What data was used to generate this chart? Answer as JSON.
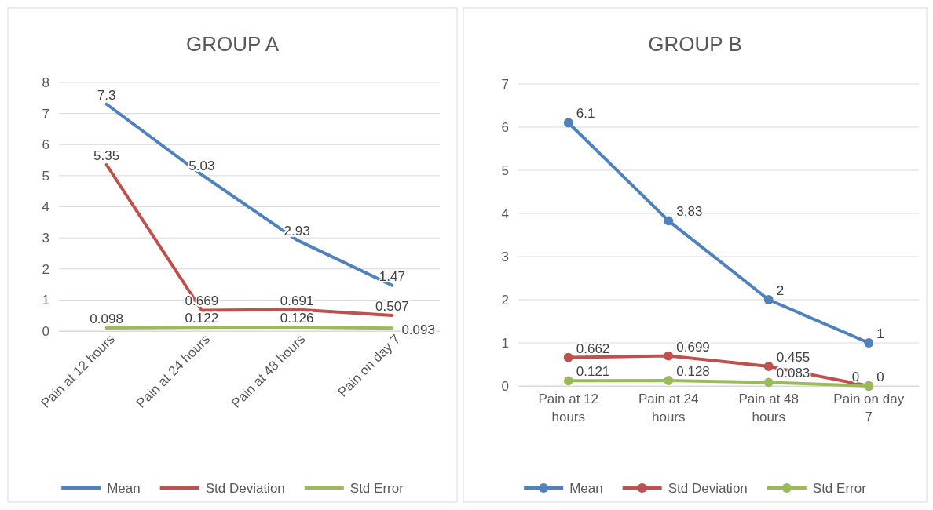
{
  "chart_data": [
    {
      "type": "line",
      "title": "GROUP A",
      "categories": [
        "Pain at 12 hours",
        "Pain at 24 hours",
        "Pain at 48 hours",
        "Pain on day 7"
      ],
      "series": [
        {
          "name": "Mean",
          "color": "#4f81bd",
          "values": [
            7.3,
            5.03,
            2.93,
            1.47
          ]
        },
        {
          "name": "Std Deviation",
          "color": "#c0504d",
          "values": [
            5.35,
            0.669,
            0.691,
            0.507
          ]
        },
        {
          "name": "Std Error",
          "color": "#9bbb59",
          "values": [
            0.098,
            0.122,
            0.126,
            0.093
          ]
        }
      ],
      "ylim": [
        0,
        8
      ],
      "yticks": [
        0,
        1,
        2,
        3,
        4,
        5,
        6,
        7,
        8
      ],
      "grid": "y",
      "legend": "bottom",
      "marker": "none",
      "data_labels": true
    },
    {
      "type": "line",
      "title": "GROUP B",
      "categories": [
        "Pain at 12 hours",
        "Pain at 24 hours",
        "Pain at 48 hours",
        "Pain on day 7"
      ],
      "series": [
        {
          "name": "Mean",
          "color": "#4f81bd",
          "values": [
            6.1,
            3.83,
            2,
            1
          ]
        },
        {
          "name": "Std Deviation",
          "color": "#c0504d",
          "values": [
            0.662,
            0.699,
            0.455,
            0
          ]
        },
        {
          "name": "Std Error",
          "color": "#9bbb59",
          "values": [
            0.121,
            0.128,
            0.083,
            0
          ]
        }
      ],
      "ylim": [
        0,
        7
      ],
      "yticks": [
        0,
        1,
        2,
        3,
        4,
        5,
        6,
        7
      ],
      "grid": "y",
      "legend": "bottom",
      "marker": "circle",
      "data_labels": true
    }
  ]
}
